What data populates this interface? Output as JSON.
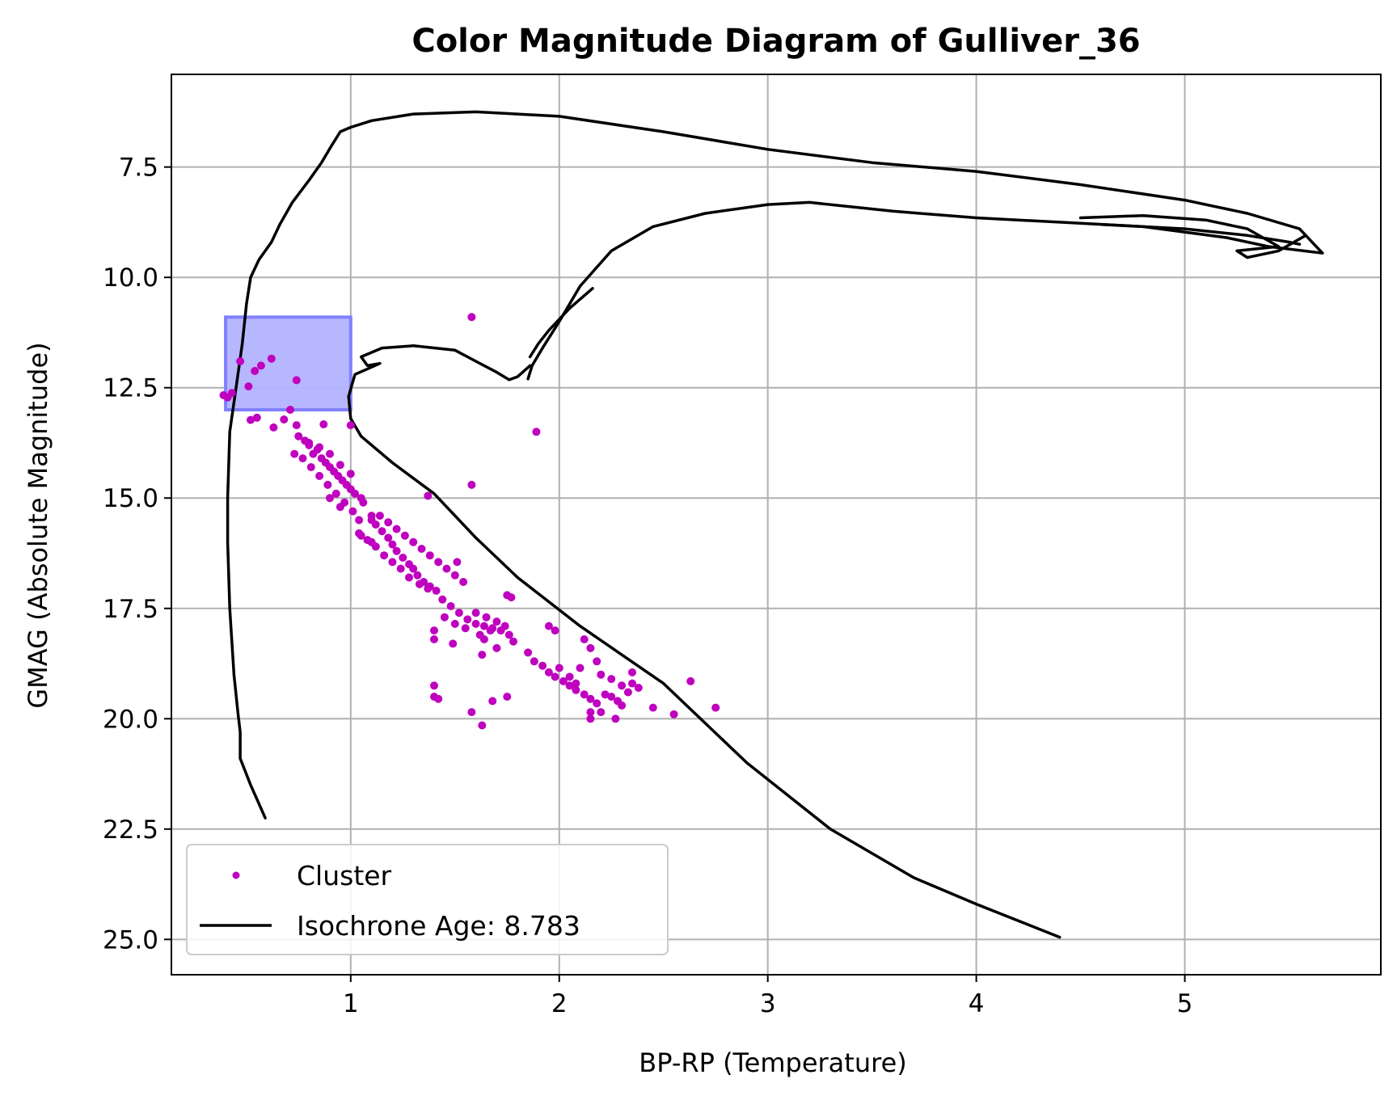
{
  "chart_data": {
    "type": "scatter",
    "title": "Color Magnitude Diagram of Gulliver_36",
    "xlabel": "BP-RP (Temperature)",
    "ylabel": "GMAG (Absolute Magnitude)",
    "xlim": [
      0.14,
      5.94
    ],
    "ylim": [
      25.8,
      5.4
    ],
    "y_inverted": true,
    "grid": true,
    "legend_position": "lower-left",
    "xticks": [
      1,
      2,
      3,
      4,
      5
    ],
    "yticks": [
      7.5,
      10.0,
      12.5,
      15.0,
      17.5,
      20.0,
      22.5,
      25.0
    ],
    "colors": {
      "cluster": "#bf00bf",
      "isochrone": "#000000",
      "selection_fill": "#b3b3ff",
      "selection_edge": "#8080ff",
      "grid": "#b0b0b0"
    },
    "selection_box": {
      "x": [
        0.4,
        1.0
      ],
      "y": [
        10.9,
        13.0
      ]
    },
    "series": [
      {
        "name": "Cluster",
        "kind": "scatter",
        "points": [
          [
            0.39,
            12.67
          ],
          [
            0.43,
            12.62
          ],
          [
            0.41,
            12.72
          ],
          [
            0.47,
            11.9
          ],
          [
            0.54,
            12.12
          ],
          [
            0.57,
            12.0
          ],
          [
            0.51,
            12.47
          ],
          [
            0.62,
            11.84
          ],
          [
            0.74,
            12.33
          ],
          [
            0.52,
            13.23
          ],
          [
            0.55,
            13.18
          ],
          [
            0.63,
            13.4
          ],
          [
            0.68,
            13.22
          ],
          [
            0.71,
            13.0
          ],
          [
            0.74,
            13.35
          ],
          [
            0.87,
            13.33
          ],
          [
            1.58,
            10.9
          ],
          [
            1.89,
            13.5
          ],
          [
            0.75,
            13.6
          ],
          [
            0.78,
            13.7
          ],
          [
            0.8,
            13.8
          ],
          [
            0.82,
            14.0
          ],
          [
            0.84,
            13.9
          ],
          [
            0.86,
            14.1
          ],
          [
            0.88,
            14.2
          ],
          [
            0.9,
            14.3
          ],
          [
            0.92,
            14.4
          ],
          [
            0.94,
            14.5
          ],
          [
            0.96,
            14.6
          ],
          [
            0.98,
            14.7
          ],
          [
            1.0,
            14.8
          ],
          [
            1.02,
            14.9
          ],
          [
            1.05,
            15.0
          ],
          [
            0.73,
            14.0
          ],
          [
            0.77,
            14.1
          ],
          [
            0.81,
            14.3
          ],
          [
            0.85,
            14.5
          ],
          [
            0.89,
            14.7
          ],
          [
            0.93,
            14.9
          ],
          [
            0.97,
            15.1
          ],
          [
            1.01,
            15.3
          ],
          [
            1.04,
            15.5
          ],
          [
            0.8,
            13.75
          ],
          [
            0.85,
            13.85
          ],
          [
            0.9,
            14.0
          ],
          [
            0.95,
            14.25
          ],
          [
            1.0,
            14.45
          ],
          [
            1.06,
            15.1
          ],
          [
            1.1,
            15.4
          ],
          [
            1.12,
            15.6
          ],
          [
            1.15,
            15.75
          ],
          [
            1.18,
            15.9
          ],
          [
            1.2,
            16.05
          ],
          [
            1.22,
            16.2
          ],
          [
            1.25,
            16.35
          ],
          [
            1.28,
            16.5
          ],
          [
            1.3,
            16.6
          ],
          [
            1.32,
            16.75
          ],
          [
            1.35,
            16.9
          ],
          [
            1.38,
            17.0
          ],
          [
            1.04,
            15.8
          ],
          [
            1.08,
            15.95
          ],
          [
            1.12,
            16.1
          ],
          [
            1.16,
            16.3
          ],
          [
            1.2,
            16.45
          ],
          [
            1.24,
            16.6
          ],
          [
            1.28,
            16.8
          ],
          [
            1.33,
            16.95
          ],
          [
            1.37,
            17.05
          ],
          [
            1.1,
            15.5
          ],
          [
            1.14,
            15.4
          ],
          [
            1.18,
            15.55
          ],
          [
            1.22,
            15.7
          ],
          [
            1.26,
            15.85
          ],
          [
            1.3,
            16.0
          ],
          [
            1.34,
            16.15
          ],
          [
            1.38,
            16.3
          ],
          [
            1.42,
            16.45
          ],
          [
            1.46,
            16.6
          ],
          [
            1.5,
            16.75
          ],
          [
            1.54,
            16.9
          ],
          [
            1.41,
            17.1
          ],
          [
            1.44,
            17.3
          ],
          [
            1.48,
            17.45
          ],
          [
            1.52,
            17.6
          ],
          [
            1.56,
            17.75
          ],
          [
            1.6,
            17.85
          ],
          [
            1.64,
            17.9
          ],
          [
            1.68,
            17.95
          ],
          [
            1.72,
            18.0
          ],
          [
            1.76,
            18.1
          ],
          [
            1.78,
            18.25
          ],
          [
            1.45,
            17.7
          ],
          [
            1.5,
            17.85
          ],
          [
            1.55,
            17.95
          ],
          [
            1.6,
            17.6
          ],
          [
            1.65,
            17.7
          ],
          [
            1.7,
            17.8
          ],
          [
            1.74,
            17.9
          ],
          [
            1.77,
            17.25
          ],
          [
            1.75,
            17.2
          ],
          [
            1.51,
            16.45
          ],
          [
            1.37,
            14.95
          ],
          [
            1.58,
            14.7
          ],
          [
            1.4,
            18.0
          ],
          [
            1.4,
            18.2
          ],
          [
            1.49,
            18.3
          ],
          [
            1.62,
            18.1
          ],
          [
            1.64,
            18.2
          ],
          [
            1.63,
            18.55
          ],
          [
            1.67,
            18.0
          ],
          [
            1.7,
            18.4
          ],
          [
            1.85,
            18.5
          ],
          [
            1.88,
            18.7
          ],
          [
            1.92,
            18.8
          ],
          [
            1.95,
            18.95
          ],
          [
            1.98,
            19.05
          ],
          [
            2.0,
            18.85
          ],
          [
            2.02,
            19.15
          ],
          [
            2.05,
            19.25
          ],
          [
            2.08,
            19.35
          ],
          [
            2.12,
            19.45
          ],
          [
            2.15,
            19.55
          ],
          [
            2.18,
            19.65
          ],
          [
            2.22,
            19.45
          ],
          [
            2.25,
            19.5
          ],
          [
            2.28,
            19.6
          ],
          [
            2.3,
            19.7
          ],
          [
            2.33,
            19.4
          ],
          [
            2.35,
            19.2
          ],
          [
            2.38,
            19.3
          ],
          [
            1.95,
            17.9
          ],
          [
            1.98,
            18.0
          ],
          [
            2.12,
            18.2
          ],
          [
            2.15,
            18.4
          ],
          [
            2.18,
            18.7
          ],
          [
            2.1,
            18.85
          ],
          [
            2.2,
            19.0
          ],
          [
            2.25,
            19.1
          ],
          [
            2.3,
            19.25
          ],
          [
            2.35,
            18.95
          ],
          [
            2.05,
            19.05
          ],
          [
            2.08,
            19.2
          ],
          [
            2.15,
            19.85
          ],
          [
            2.15,
            20.0
          ],
          [
            2.27,
            20.0
          ],
          [
            2.2,
            19.85
          ],
          [
            2.45,
            19.75
          ],
          [
            2.55,
            19.9
          ],
          [
            2.63,
            19.15
          ],
          [
            2.75,
            19.75
          ],
          [
            1.4,
            19.25
          ],
          [
            1.4,
            19.5
          ],
          [
            1.42,
            19.55
          ],
          [
            1.58,
            19.85
          ],
          [
            1.63,
            20.15
          ],
          [
            1.68,
            19.6
          ],
          [
            1.75,
            19.5
          ],
          [
            1.0,
            13.35
          ],
          [
            0.9,
            15.0
          ],
          [
            0.95,
            15.2
          ],
          [
            1.05,
            15.85
          ],
          [
            1.1,
            16.0
          ]
        ]
      },
      {
        "name": "Isochrone Age: 8.783",
        "kind": "line",
        "segments": [
          [
            [
              0.59,
              22.25
            ],
            [
              0.52,
              21.5
            ],
            [
              0.47,
              20.9
            ],
            [
              0.47,
              20.3
            ],
            [
              0.46,
              19.9
            ],
            [
              0.44,
              19.0
            ],
            [
              0.42,
              17.5
            ],
            [
              0.41,
              16.0
            ],
            [
              0.41,
              15.0
            ],
            [
              0.42,
              13.5
            ],
            [
              0.45,
              12.5
            ],
            [
              0.48,
              11.5
            ],
            [
              0.5,
              10.6
            ],
            [
              0.52,
              10.0
            ],
            [
              0.56,
              9.6
            ],
            [
              0.62,
              9.2
            ],
            [
              0.66,
              8.8
            ],
            [
              0.72,
              8.3
            ],
            [
              0.8,
              7.8
            ],
            [
              0.86,
              7.4
            ],
            [
              0.91,
              7.0
            ],
            [
              0.95,
              6.7
            ],
            [
              1.0,
              6.6
            ],
            [
              1.1,
              6.45
            ],
            [
              1.3,
              6.3
            ],
            [
              1.6,
              6.25
            ],
            [
              2.0,
              6.35
            ],
            [
              2.5,
              6.7
            ],
            [
              3.0,
              7.1
            ],
            [
              3.5,
              7.4
            ],
            [
              4.0,
              7.6
            ],
            [
              4.5,
              7.9
            ],
            [
              5.0,
              8.25
            ],
            [
              5.3,
              8.55
            ],
            [
              5.55,
              8.9
            ],
            [
              5.66,
              9.45
            ],
            [
              5.4,
              9.3
            ],
            [
              5.2,
              9.1
            ],
            [
              4.8,
              8.85
            ],
            [
              4.4,
              8.75
            ],
            [
              4.0,
              8.65
            ],
            [
              3.6,
              8.5
            ],
            [
              3.2,
              8.3
            ],
            [
              3.0,
              8.35
            ],
            [
              2.7,
              8.55
            ],
            [
              2.45,
              8.85
            ],
            [
              2.25,
              9.4
            ],
            [
              2.1,
              10.2
            ],
            [
              2.0,
              11.0
            ],
            [
              1.92,
              11.6
            ],
            [
              1.87,
              12.0
            ],
            [
              1.85,
              12.3
            ]
          ],
          [
            [
              1.86,
              11.8
            ],
            [
              1.9,
              11.5
            ],
            [
              1.95,
              11.2
            ],
            [
              2.05,
              10.7
            ],
            [
              2.16,
              10.25
            ]
          ],
          [
            [
              1.86,
              12.0
            ],
            [
              1.8,
              12.25
            ],
            [
              1.76,
              12.32
            ],
            [
              1.7,
              12.15
            ],
            [
              1.6,
              11.9
            ],
            [
              1.5,
              11.65
            ],
            [
              1.3,
              11.55
            ],
            [
              1.15,
              11.6
            ],
            [
              1.05,
              11.8
            ],
            [
              1.08,
              12.0
            ],
            [
              1.14,
              11.95
            ],
            [
              1.02,
              12.2
            ],
            [
              0.99,
              12.7
            ],
            [
              1.0,
              13.2
            ],
            [
              1.05,
              13.6
            ],
            [
              1.2,
              14.2
            ],
            [
              1.4,
              14.9
            ],
            [
              1.6,
              15.9
            ],
            [
              1.8,
              16.8
            ],
            [
              2.1,
              17.9
            ],
            [
              2.5,
              19.2
            ],
            [
              2.9,
              21.0
            ],
            [
              3.3,
              22.5
            ],
            [
              3.7,
              23.6
            ],
            [
              4.0,
              24.2
            ],
            [
              4.4,
              24.95
            ]
          ],
          [
            [
              4.5,
              8.65
            ],
            [
              4.8,
              8.6
            ],
            [
              5.1,
              8.7
            ],
            [
              5.3,
              8.9
            ],
            [
              5.45,
              9.3
            ],
            [
              5.25,
              9.4
            ],
            [
              5.3,
              9.55
            ],
            [
              5.45,
              9.4
            ],
            [
              5.58,
              9.05
            ]
          ],
          [
            [
              4.6,
              8.8
            ],
            [
              5.0,
              8.9
            ],
            [
              5.3,
              9.05
            ],
            [
              5.5,
              9.2
            ],
            [
              5.55,
              9.25
            ]
          ]
        ]
      }
    ]
  }
}
